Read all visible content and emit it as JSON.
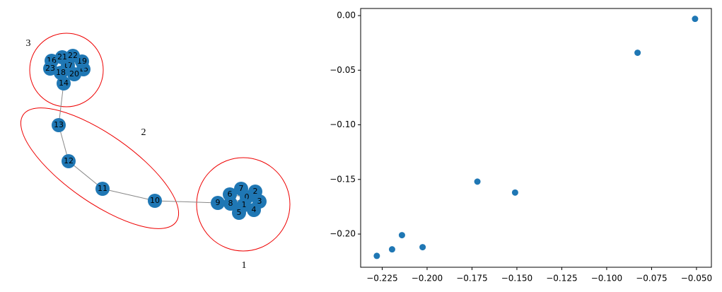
{
  "chart_data": [
    {
      "type": "network",
      "nodes": [
        "0",
        "1",
        "2",
        "3",
        "4",
        "5",
        "6",
        "7",
        "8",
        "9",
        "10",
        "11",
        "12",
        "13",
        "14",
        "15",
        "16",
        "17",
        "18",
        "19",
        "20",
        "21",
        "22",
        "23"
      ],
      "clusters": [
        "1",
        "2",
        "3"
      ],
      "color": "#1f77b4"
    },
    {
      "type": "scatter",
      "x": [
        -0.228,
        -0.2195,
        -0.214,
        -0.2025,
        -0.172,
        -0.151,
        -0.0828,
        -0.0508
      ],
      "y": [
        -0.22,
        -0.214,
        -0.201,
        -0.212,
        -0.152,
        -0.162,
        -0.034,
        -0.003
      ],
      "color": "#1f77b4",
      "xlim": [
        -0.237,
        -0.0417
      ],
      "ylim": [
        -0.2304,
        0.0065
      ],
      "xticks": [
        {
          "value": -0.225,
          "label": "−0.225"
        },
        {
          "value": -0.2,
          "label": "−0.200"
        },
        {
          "value": -0.175,
          "label": "−0.175"
        },
        {
          "value": -0.15,
          "label": "−0.150"
        },
        {
          "value": -0.125,
          "label": "−0.125"
        },
        {
          "value": -0.1,
          "label": "−0.100"
        },
        {
          "value": -0.075,
          "label": "−0.075"
        },
        {
          "value": -0.05,
          "label": "−0.050"
        }
      ],
      "yticks": [
        {
          "value": 0,
          "label": "0.00"
        },
        {
          "value": -0.05,
          "label": "−0.05"
        },
        {
          "value": -0.1,
          "label": "−0.10"
        },
        {
          "value": -0.15,
          "label": "−0.15"
        },
        {
          "value": -0.2,
          "label": "−0.20"
        }
      ]
    }
  ]
}
